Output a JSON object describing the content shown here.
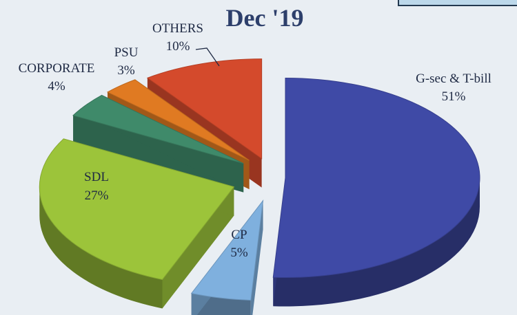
{
  "chart_data": {
    "type": "pie",
    "title": "Dec '19",
    "slices": [
      {
        "label": "G-sec & T-bill",
        "value": 51,
        "display": "51%",
        "color": "#3f4aa6"
      },
      {
        "label": "CP",
        "value": 5,
        "display": "5%",
        "color": "#7fb0de"
      },
      {
        "label": "SDL",
        "value": 27,
        "display": "27%",
        "color": "#9cc43a"
      },
      {
        "label": "CORPORATE",
        "value": 4,
        "display": "4%",
        "color": "#3f8a6a"
      },
      {
        "label": "PSU",
        "value": 3,
        "display": "3%",
        "color": "#e07a22"
      },
      {
        "label": "OTHERS",
        "value": 10,
        "display": "10%",
        "color": "#d44a2c"
      }
    ]
  }
}
